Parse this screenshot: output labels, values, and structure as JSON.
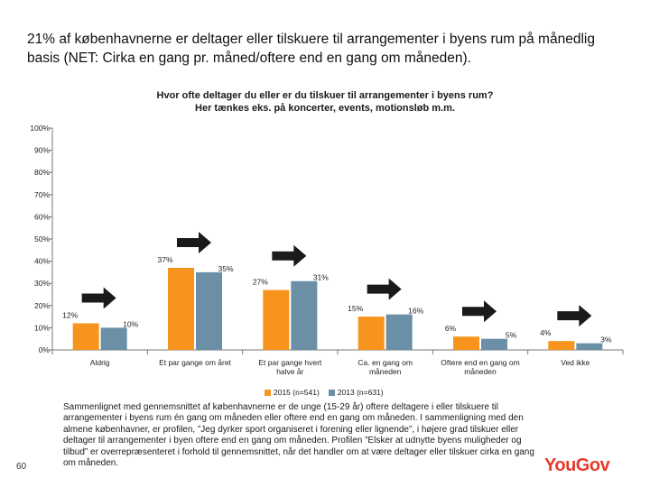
{
  "slide": {
    "headline": "21% af københavnerne er deltager eller tilskuere til arrangementer i byens rum på månedlig basis (NET: Cirka en gang pr. måned/oftere end en gang om måneden).",
    "chart_title": "Hvor ofte deltager du eller er du tilskuer til arrangementer i byens rum?\nHer tænkes eks. på koncerter, events, motionsløb m.m.",
    "summary": "Sammenlignet med gennemsnittet af københavnerne er de unge (15-29 år) oftere deltagere i eller tilskuere til arrangementer i byens rum én gang om måneden eller oftere end en gang om måneden. I sammenligning med den almene københavner, er profilen, ”Jeg dyrker sport organiseret i forening eller lignende”, i højere grad tilskuer eller deltager til arrangementer i byen oftere end en gang om måneden. Profilen ”Elsker at udnytte byens muligheder og tilbud” er overrepræsenteret i forhold til gennemsnittet, når det handler om at være deltager eller tilskuer cirka en gang om måneden.",
    "page_number": "60",
    "logo": "YouGov"
  },
  "colors": {
    "series_2015": "#f7941d",
    "series_2013": "#6a8fa6",
    "arrow": "#1a1a1a",
    "logo": "#e43b2c"
  },
  "chart_data": {
    "type": "bar",
    "title": "Hvor ofte deltager du eller er du tilskuer til arrangementer i byens rum? Her tænkes eks. på koncerter, events, motionsløb m.m.",
    "categories": [
      "Aldrig",
      "Et par gange om året",
      "Et par gange hvert halve år",
      "Ca. en gang om måneden",
      "Oftere end en gang om måneden",
      "Ved ikke"
    ],
    "category_lines": [
      [
        "Aldrig"
      ],
      [
        "Et par gange om året"
      ],
      [
        "Et par gange hvert",
        "halve år"
      ],
      [
        "Ca. en gang om",
        "måneden"
      ],
      [
        "Oftere end en gang om",
        "måneden"
      ],
      [
        "Ved ikke"
      ]
    ],
    "series": [
      {
        "name": "2015 (n=541)",
        "values": [
          12,
          37,
          27,
          15,
          6,
          4
        ],
        "labels": [
          "12%",
          "37%",
          "27%",
          "15%",
          "6%",
          "4%"
        ]
      },
      {
        "name": "2013 (n=631)",
        "values": [
          10,
          35,
          31,
          16,
          5,
          3
        ],
        "labels": [
          "10%",
          "35%",
          "31%",
          "16%",
          "5%",
          "3%"
        ]
      }
    ],
    "ylim": [
      0,
      100
    ],
    "yticks": [
      0,
      10,
      20,
      30,
      40,
      50,
      60,
      70,
      80,
      90,
      100
    ],
    "ytick_labels": [
      "0%",
      "10%",
      "20%",
      "30%",
      "40%",
      "50%",
      "60%",
      "70%",
      "80%",
      "90%",
      "100%"
    ],
    "trend_arrows": [
      "up",
      "up",
      "up",
      "up",
      "up",
      "up"
    ],
    "legend": "bottom",
    "grid": false
  }
}
